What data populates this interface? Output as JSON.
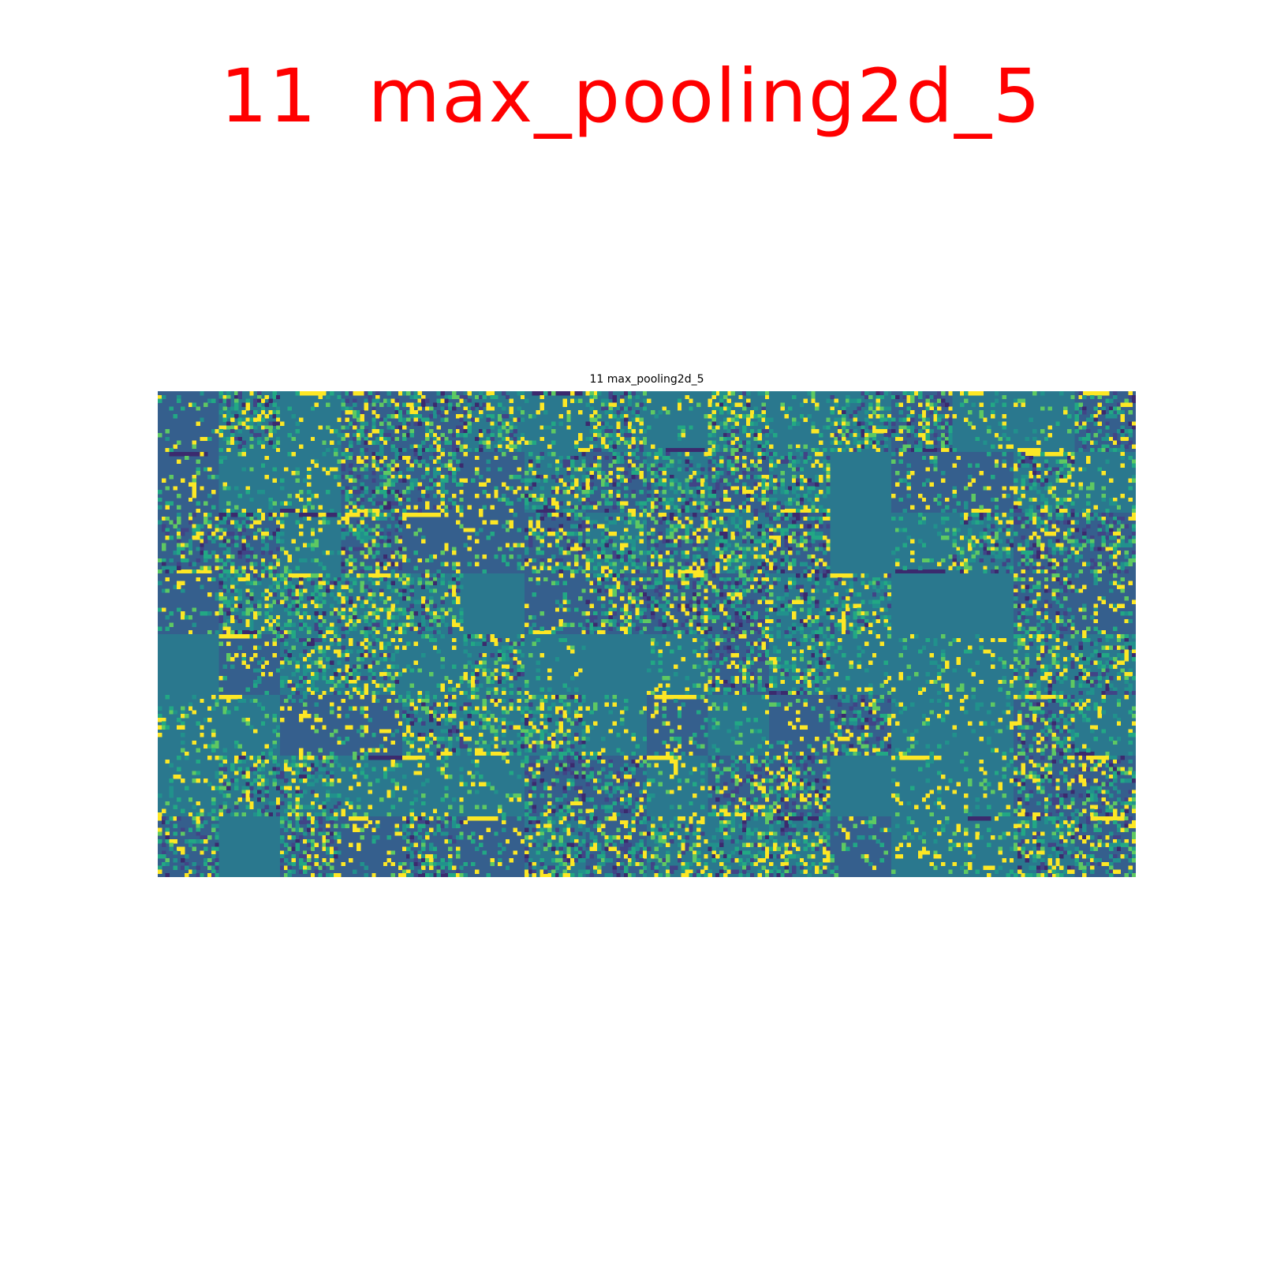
{
  "overlay": {
    "title": "11  max_pooling2d_5",
    "color": "#ff0000"
  },
  "chart_data": {
    "type": "heatmap",
    "title": "11 max_pooling2d_5",
    "colormap": "viridis",
    "axes_visible": false,
    "grid": {
      "rows": 8,
      "cols": 16,
      "tile_cells": 16
    },
    "palette": {
      "dark": "#3b2a6e",
      "indigo": "#414487",
      "blue": "#355f8d",
      "teal": "#2a788e",
      "cyan": "#21918c",
      "green": "#22a884",
      "lime": "#5ec962",
      "yellow": "#fde725"
    },
    "tile_kinds": [
      "SBSBBBSBSBSBBSSB",
      "SSSBBSBBBBBUSSBS",
      "BBSBSSBBBBBUSBBB",
      "SBBBBUSBBBBBUUBS",
      "USBBSBSUSBBSSSBB",
      "SSSSBBBSSSSBSSBS",
      "SBBSSSBBSBBUSSBB",
      "BUBSBSBBBBBSSSBB"
    ]
  }
}
